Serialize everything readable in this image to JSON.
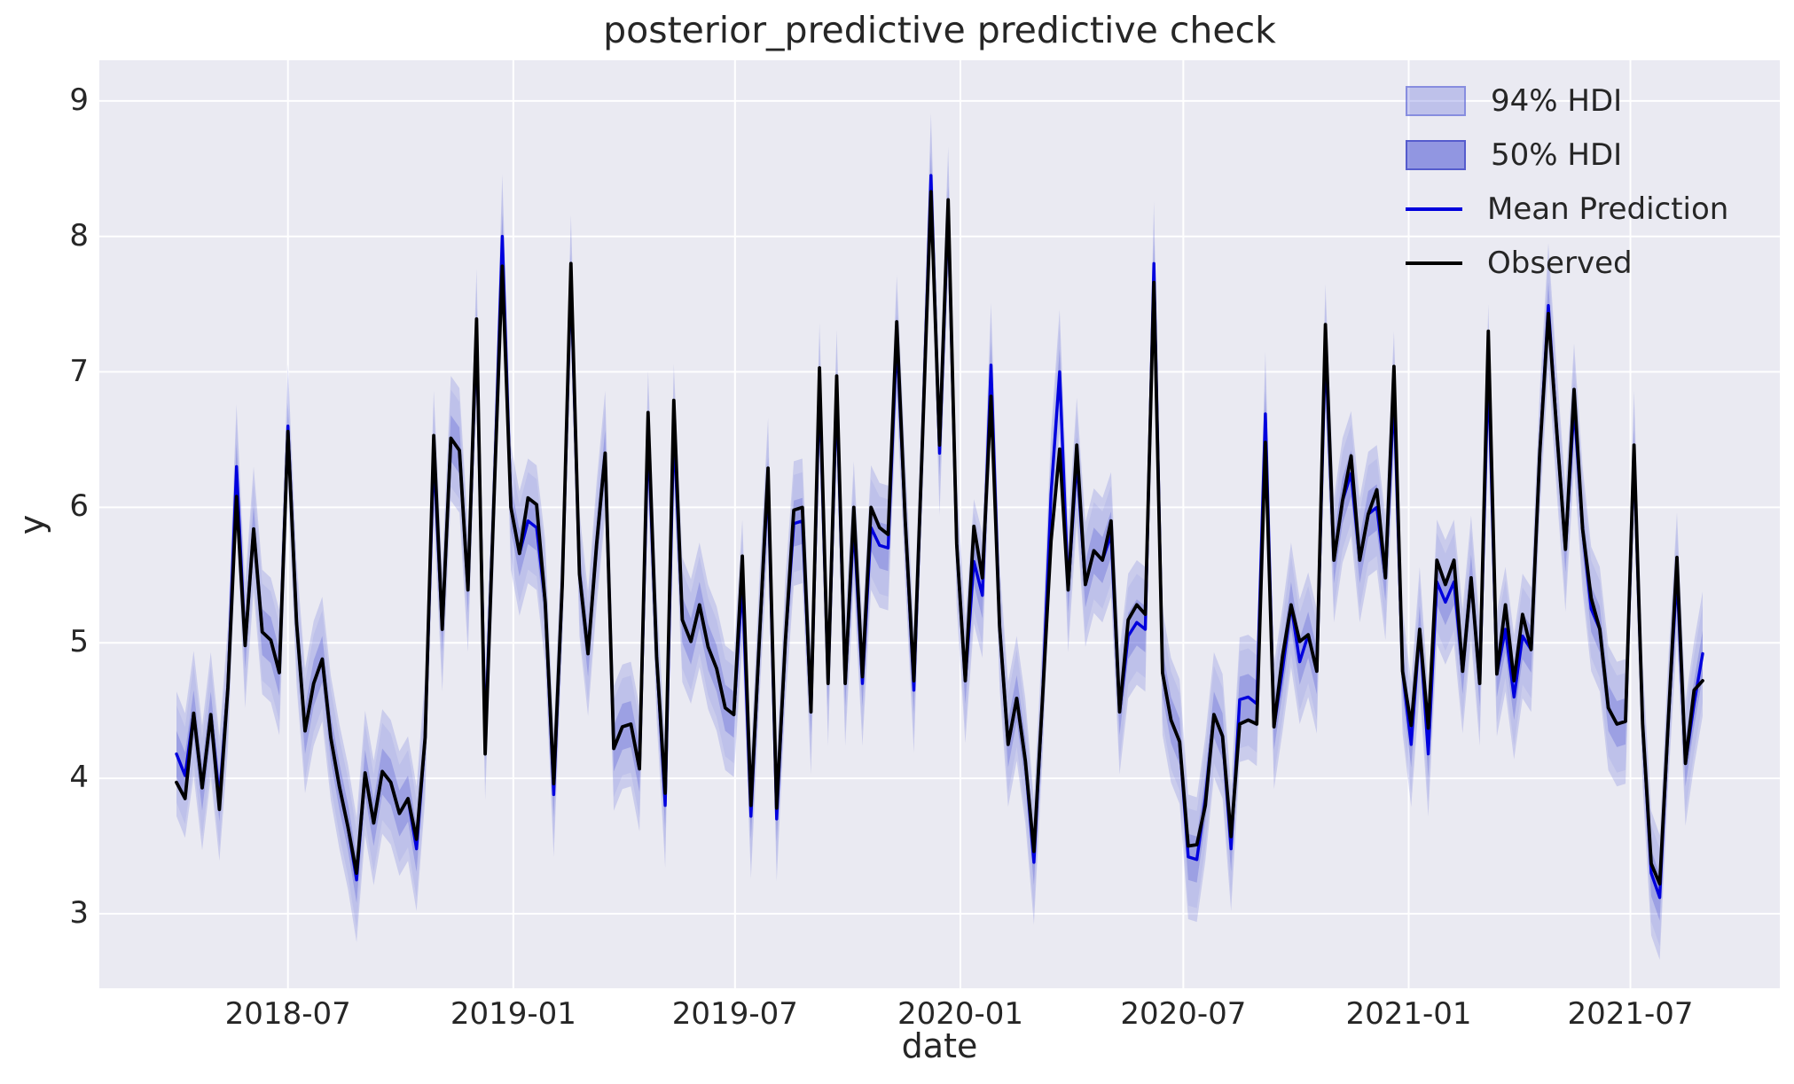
{
  "title": "posterior_predictive predictive check",
  "xlabel": "date",
  "ylabel": "y",
  "legend": {
    "items": [
      {
        "label": "94% HDI",
        "type": "band94"
      },
      {
        "label": "50% HDI",
        "type": "band50"
      },
      {
        "label": "Mean Prediction",
        "type": "mean-line"
      },
      {
        "label": "Observed",
        "type": "observed-line"
      }
    ]
  },
  "colors": {
    "plot_bg": "#eaeaf2",
    "grid": "#ffffff",
    "band": "#5a62d6",
    "band94_opacity": 0.22,
    "band50_opacity": 0.34,
    "mean_line": "#0000dd",
    "observed_line": "#000000",
    "text": "#262626"
  },
  "chart_data": {
    "type": "line",
    "title": "posterior_predictive predictive check",
    "xlabel": "date",
    "ylabel": "y",
    "grid": "on",
    "legend_position": "upper right",
    "x_start_date": "2018-04-01",
    "x_freq_days": 7,
    "n_points": 179,
    "xlim_days": [
      -63,
      1309
    ],
    "ylim": [
      2.45,
      9.3
    ],
    "y_ticks": [
      3,
      4,
      5,
      6,
      7,
      8,
      9
    ],
    "x_ticks": [
      {
        "label": "2018-07",
        "day": 91
      },
      {
        "label": "2019-01",
        "day": 275
      },
      {
        "label": "2019-07",
        "day": 456
      },
      {
        "label": "2020-01",
        "day": 640
      },
      {
        "label": "2020-07",
        "day": 822
      },
      {
        "label": "2021-01",
        "day": 1006
      },
      {
        "label": "2021-07",
        "day": 1187
      }
    ],
    "hdi94_halfwidth": 0.46,
    "hdi50_halfwidth": 0.17,
    "series": [
      {
        "name": "Observed",
        "values": [
          3.97,
          3.85,
          4.48,
          3.93,
          4.47,
          3.77,
          4.67,
          6.08,
          4.98,
          5.84,
          5.08,
          5.02,
          4.78,
          6.56,
          5.15,
          4.35,
          4.7,
          4.88,
          4.3,
          3.94,
          3.64,
          3.3,
          4.04,
          3.67,
          4.05,
          3.97,
          3.74,
          3.85,
          3.55,
          4.3,
          6.53,
          5.1,
          6.51,
          6.42,
          5.39,
          7.39,
          4.18,
          6.0,
          7.78,
          6.0,
          5.66,
          6.07,
          6.02,
          5.3,
          3.96,
          5.44,
          7.8,
          5.51,
          4.92,
          5.73,
          6.4,
          4.22,
          4.38,
          4.4,
          4.07,
          6.7,
          4.9,
          3.89,
          6.79,
          5.17,
          5.01,
          5.28,
          4.97,
          4.81,
          4.52,
          4.47,
          5.64,
          3.8,
          5.05,
          6.29,
          3.78,
          5.0,
          5.98,
          6.0,
          4.49,
          7.03,
          4.7,
          6.97,
          4.7,
          6.0,
          4.75,
          6.0,
          5.85,
          5.8,
          7.37,
          5.9,
          4.72,
          6.5,
          8.33,
          6.46,
          8.27,
          5.73,
          4.72,
          5.86,
          5.48,
          6.82,
          5.12,
          4.25,
          4.59,
          4.13,
          3.46,
          4.58,
          5.75,
          6.43,
          5.39,
          6.46,
          5.43,
          5.68,
          5.61,
          5.9,
          4.49,
          5.17,
          5.28,
          5.21,
          7.66,
          4.78,
          4.43,
          4.27,
          3.5,
          3.51,
          3.8,
          4.47,
          4.31,
          3.57,
          4.4,
          4.43,
          4.4,
          6.48,
          4.38,
          4.9,
          5.28,
          5.01,
          5.06,
          4.79,
          7.35,
          5.61,
          6.05,
          6.38,
          5.61,
          5.95,
          6.13,
          5.48,
          7.04,
          4.79,
          4.39,
          5.1,
          4.37,
          5.61,
          5.43,
          5.61,
          4.79,
          5.48,
          4.7,
          7.3,
          4.77,
          5.28,
          4.72,
          5.21,
          4.95,
          6.4,
          7.43,
          6.55,
          5.69,
          6.87,
          5.84,
          5.33,
          5.1,
          4.52,
          4.4,
          4.42,
          6.46,
          4.4,
          3.37,
          3.22,
          4.43,
          5.63,
          4.11,
          4.65,
          4.72
        ]
      },
      {
        "name": "Mean Prediction",
        "values": [
          4.18,
          4.02,
          4.48,
          3.93,
          4.47,
          3.85,
          4.67,
          6.3,
          4.98,
          5.84,
          5.08,
          5.02,
          4.78,
          6.6,
          5.15,
          4.35,
          4.7,
          4.88,
          4.3,
          3.94,
          3.64,
          3.25,
          4.04,
          3.67,
          4.05,
          3.97,
          3.74,
          3.85,
          3.48,
          4.3,
          6.4,
          5.1,
          6.51,
          6.42,
          5.39,
          7.3,
          4.3,
          6.0,
          8.0,
          6.0,
          5.66,
          5.9,
          5.85,
          5.3,
          3.88,
          5.44,
          7.7,
          5.51,
          4.92,
          5.73,
          6.4,
          4.22,
          4.38,
          4.4,
          4.07,
          6.55,
          4.9,
          3.8,
          6.6,
          5.17,
          5.01,
          5.28,
          4.97,
          4.81,
          4.52,
          4.47,
          5.45,
          3.72,
          5.05,
          6.2,
          3.7,
          5.0,
          5.88,
          5.9,
          4.49,
          6.9,
          4.7,
          6.85,
          4.7,
          5.88,
          4.7,
          5.85,
          5.72,
          5.7,
          7.25,
          5.9,
          4.65,
          6.5,
          8.45,
          6.4,
          8.2,
          5.73,
          4.72,
          5.6,
          5.35,
          7.05,
          5.12,
          4.25,
          4.59,
          4.13,
          3.38,
          4.58,
          6.1,
          7.0,
          5.39,
          6.35,
          5.43,
          5.68,
          5.61,
          5.8,
          4.49,
          5.05,
          5.15,
          5.1,
          7.8,
          4.78,
          4.43,
          4.27,
          3.42,
          3.4,
          3.85,
          4.47,
          4.31,
          3.48,
          4.58,
          4.6,
          4.55,
          6.69,
          4.38,
          4.8,
          5.28,
          4.86,
          5.06,
          4.79,
          7.19,
          5.61,
          6.05,
          6.25,
          5.61,
          5.95,
          6.0,
          5.48,
          6.84,
          4.79,
          4.25,
          5.1,
          4.18,
          5.45,
          5.3,
          5.45,
          4.79,
          5.48,
          4.7,
          7.04,
          4.77,
          5.1,
          4.6,
          5.05,
          4.95,
          6.4,
          7.49,
          6.55,
          5.69,
          6.75,
          5.84,
          5.25,
          5.1,
          4.52,
          4.4,
          4.42,
          6.4,
          4.4,
          3.3,
          3.12,
          4.43,
          5.5,
          4.11,
          4.55,
          4.92
        ]
      }
    ]
  }
}
